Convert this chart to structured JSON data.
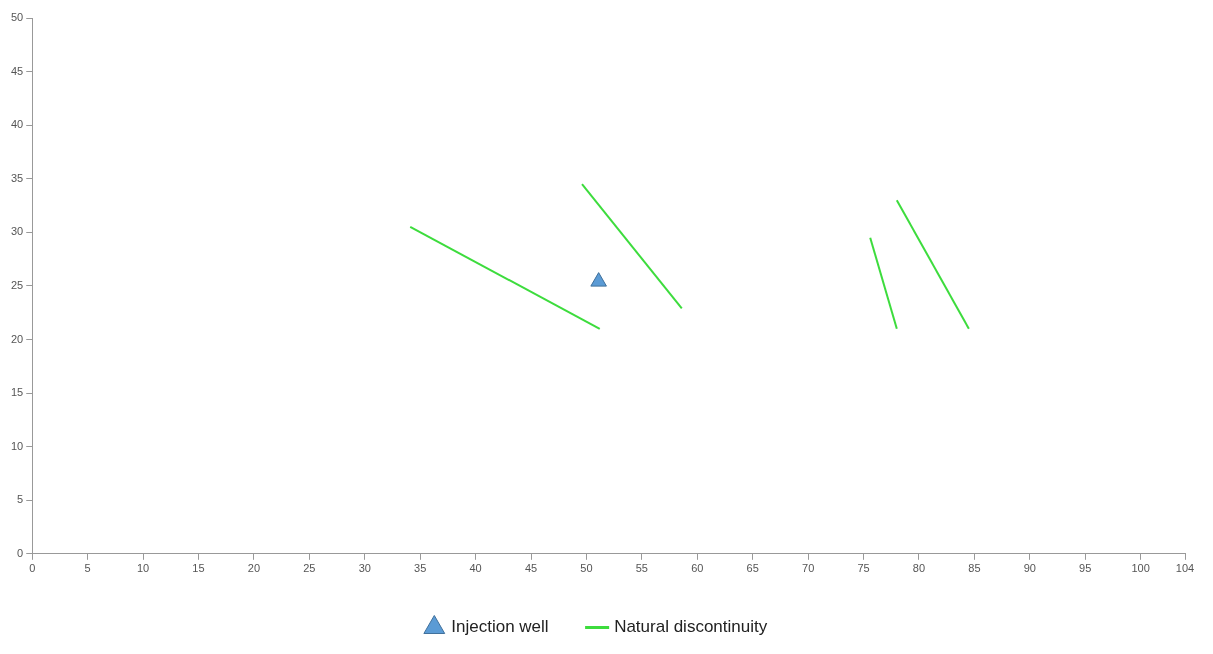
{
  "chart_data": {
    "type": "line",
    "xlim": [
      0,
      104
    ],
    "xticks": [
      0,
      5,
      10,
      15,
      20,
      25,
      30,
      35,
      40,
      45,
      50,
      55,
      60,
      65,
      70,
      75,
      80,
      85,
      90,
      95,
      100,
      104
    ],
    "ylim": [
      0,
      50
    ],
    "yticks": [
      0,
      5,
      10,
      15,
      20,
      25,
      30,
      35,
      40,
      45,
      50
    ],
    "grid": false,
    "legend": "bottom",
    "series": [
      {
        "name": "Injection well",
        "type": "scatter",
        "marker": "triangle",
        "color": "#5b9bd5",
        "x": [
          51.1
        ],
        "values": [
          25.4
        ]
      },
      {
        "name": "Natural discontinuity",
        "type": "line",
        "marker": "none",
        "color": "#3ddc3d",
        "x": [
          34.1,
          51.2
        ],
        "values": [
          30.5,
          21.0
        ]
      },
      {
        "type": "line",
        "marker": "none",
        "color": "#3ddc3d",
        "x": [
          49.6,
          58.6
        ],
        "values": [
          34.5,
          22.9
        ]
      },
      {
        "type": "line",
        "marker": "none",
        "color": "#3ddc3d",
        "x": [
          75.6,
          78.0
        ],
        "values": [
          29.5,
          21.0
        ]
      },
      {
        "type": "line",
        "marker": "none",
        "color": "#3ddc3d",
        "x": [
          78.0,
          84.5
        ],
        "values": [
          33.0,
          21.0
        ]
      }
    ]
  }
}
